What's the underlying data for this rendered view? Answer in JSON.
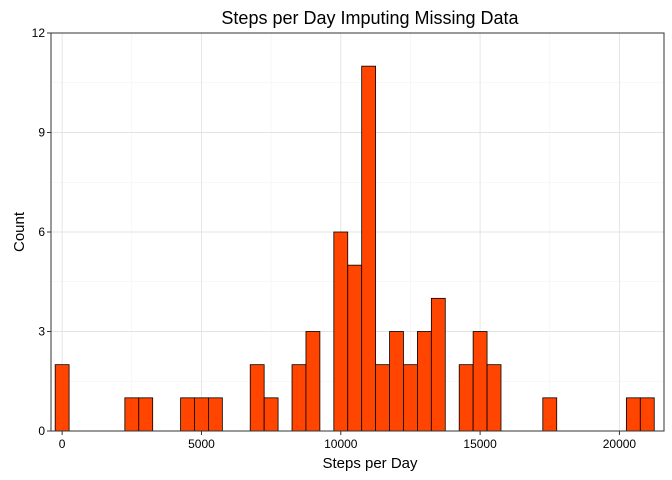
{
  "chart_data": {
    "type": "bar",
    "title": "Steps per Day Imputing Missing Data",
    "xlabel": "Steps per Day",
    "ylabel": "Count",
    "xlim": [
      -400,
      21600
    ],
    "ylim": [
      0,
      12
    ],
    "bin_width": 500,
    "x_ticks": [
      0,
      5000,
      10000,
      15000,
      20000
    ],
    "y_ticks": [
      0,
      3,
      6,
      9,
      12
    ],
    "grid": true,
    "bar_color": "#FF4500",
    "bar_edge_color": "#000000",
    "bins": [
      {
        "x": 0,
        "count": 2
      },
      {
        "x": 2500,
        "count": 1
      },
      {
        "x": 3000,
        "count": 1
      },
      {
        "x": 4500,
        "count": 1
      },
      {
        "x": 5000,
        "count": 1
      },
      {
        "x": 5500,
        "count": 1
      },
      {
        "x": 7000,
        "count": 2
      },
      {
        "x": 7500,
        "count": 1
      },
      {
        "x": 8500,
        "count": 2
      },
      {
        "x": 9000,
        "count": 3
      },
      {
        "x": 10000,
        "count": 6
      },
      {
        "x": 10500,
        "count": 5
      },
      {
        "x": 11000,
        "count": 11
      },
      {
        "x": 11500,
        "count": 2
      },
      {
        "x": 12000,
        "count": 3
      },
      {
        "x": 12500,
        "count": 2
      },
      {
        "x": 13000,
        "count": 3
      },
      {
        "x": 13500,
        "count": 4
      },
      {
        "x": 14500,
        "count": 2
      },
      {
        "x": 15000,
        "count": 3
      },
      {
        "x": 15500,
        "count": 2
      },
      {
        "x": 17500,
        "count": 1
      },
      {
        "x": 20500,
        "count": 1
      },
      {
        "x": 21000,
        "count": 1
      }
    ]
  }
}
